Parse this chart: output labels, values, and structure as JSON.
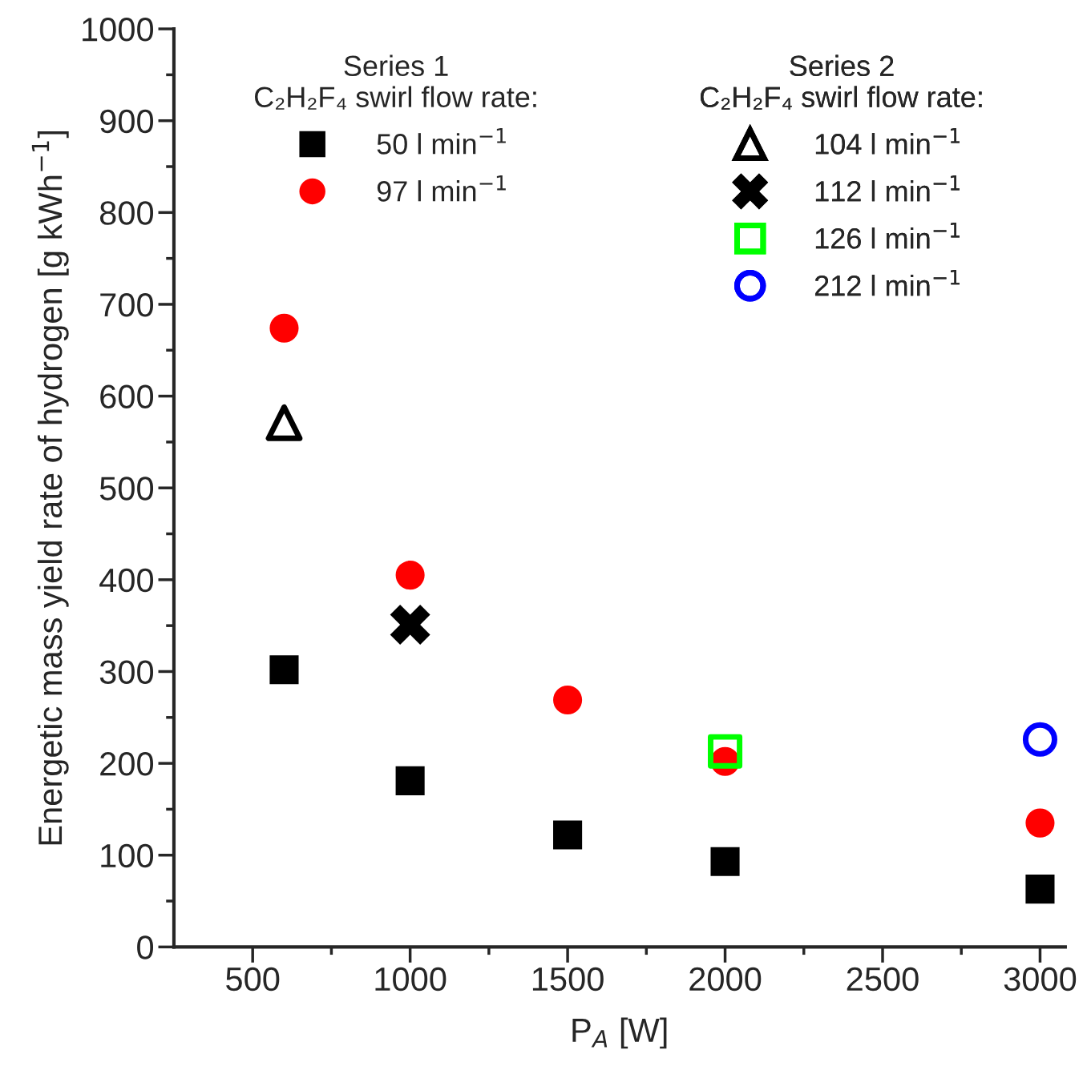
{
  "chart_data": {
    "type": "scatter",
    "xlabel": "P$_{A}$ [W]",
    "ylabel": "Energetic mass yield rate of hydrogen [g kWh$^{−1}$]",
    "annotations": [
      "Series 1\nC₂H₂F₄ swirl flow rate:",
      "Series 2\nC₂H₂F₄ swirl flow rate:"
    ],
    "xlim": [
      250,
      3080
    ],
    "xticks": [
      500,
      1000,
      1500,
      2000,
      2500,
      3000,
      {
        "value": 750,
        "label": null
      },
      {
        "value": 1250,
        "label": null
      },
      {
        "value": 1750,
        "label": null
      },
      {
        "value": 2250,
        "label": null
      },
      {
        "value": 2750,
        "label": null
      }
    ],
    "ylim": [
      0,
      1000
    ],
    "yticks": [
      0,
      100,
      200,
      300,
      400,
      500,
      600,
      700,
      800,
      900,
      1000,
      {
        "value": 50,
        "label": null
      },
      {
        "value": 150,
        "label": null
      },
      {
        "value": 250,
        "label": null
      },
      {
        "value": 350,
        "label": null
      },
      {
        "value": 450,
        "label": null
      },
      {
        "value": 550,
        "label": null
      },
      {
        "value": 650,
        "label": null
      },
      {
        "value": 750,
        "label": null
      },
      {
        "value": 850,
        "label": null
      },
      {
        "value": 950,
        "label": null
      }
    ],
    "grid": false,
    "legend": "top",
    "series": [
      {
        "name": "50 l min$^{−1}$",
        "color": "#000000",
        "marker": "square",
        "x": [
          600,
          1000,
          1500,
          2000,
          3000
        ],
        "values": [
          302,
          181,
          122,
          93,
          63
        ]
      },
      {
        "name": "97 l min$^{−1}$",
        "color": "#ff0000",
        "marker": "circle",
        "x": [
          600,
          1000,
          1500,
          2000,
          3000
        ],
        "values": [
          674,
          405,
          269,
          202,
          135
        ]
      },
      {
        "name": "104 l min$^{−1}$",
        "color": "#000000",
        "marker": "triangle",
        "x": [
          600
        ],
        "values": [
          571
        ]
      },
      {
        "name": "112 l min$^{−1}$",
        "color": "#000000",
        "marker": "cross",
        "x": [
          1000
        ],
        "values": [
          351
        ]
      },
      {
        "name": "126 l min$^{−1}$",
        "color": "#00ff00",
        "marker": "square",
        "x": [
          2000
        ],
        "values": [
          213
        ]
      },
      {
        "name": "212 l min$^{−1}$",
        "color": "#0000ff",
        "marker": "circle",
        "x": [
          3000
        ],
        "values": [
          226
        ]
      }
    ]
  }
}
